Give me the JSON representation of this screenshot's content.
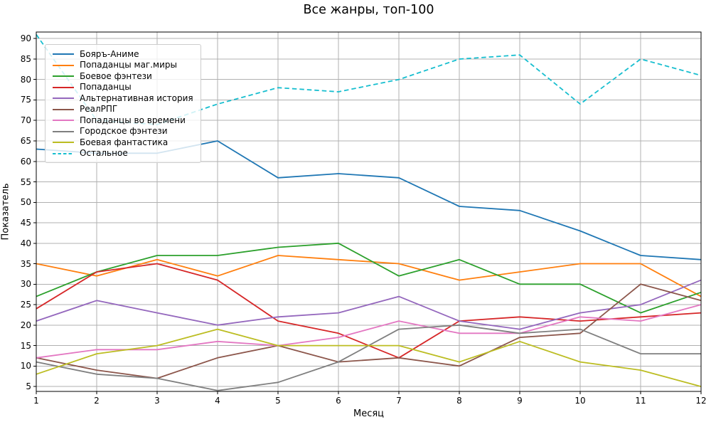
{
  "chart_data": {
    "type": "line",
    "title": "Все жанры, топ-100",
    "xlabel": "Месяц",
    "ylabel": "Показатель",
    "grid": true,
    "legend_position": "upper left",
    "x": [
      1,
      2,
      3,
      4,
      5,
      6,
      7,
      8,
      9,
      10,
      11,
      12
    ],
    "xticks": [
      1,
      2,
      3,
      4,
      5,
      6,
      7,
      8,
      9,
      10,
      11,
      12
    ],
    "yticks": [
      5,
      10,
      15,
      20,
      25,
      30,
      35,
      40,
      45,
      50,
      55,
      60,
      65,
      70,
      75,
      80,
      85,
      90
    ],
    "xlim": [
      1,
      12
    ],
    "ylim": [
      3.8,
      91.6
    ],
    "series": [
      {
        "name": "Бояръ-Аниме",
        "color": "#1f77b4",
        "dash": false,
        "values": [
          63,
          62,
          62,
          65,
          56,
          57,
          56,
          49,
          48,
          43,
          37,
          36
        ]
      },
      {
        "name": "Попаданцы маг.миры",
        "color": "#ff7f0e",
        "dash": false,
        "values": [
          35,
          32,
          36,
          32,
          37,
          36,
          35,
          31,
          33,
          35,
          35,
          27
        ]
      },
      {
        "name": "Боевое фэнтези",
        "color": "#2ca02c",
        "dash": false,
        "values": [
          27,
          33,
          37,
          37,
          39,
          40,
          32,
          36,
          30,
          30,
          23,
          28
        ]
      },
      {
        "name": "Попаданцы",
        "color": "#d62728",
        "dash": false,
        "values": [
          24,
          33,
          35,
          31,
          21,
          18,
          12,
          21,
          22,
          21,
          22,
          23
        ]
      },
      {
        "name": "Альтернативная история",
        "color": "#9467bd",
        "dash": false,
        "values": [
          21,
          26,
          23,
          20,
          22,
          23,
          27,
          21,
          19,
          23,
          25,
          31
        ]
      },
      {
        "name": "РеалРПГ",
        "color": "#8c564b",
        "dash": false,
        "values": [
          12,
          9,
          7,
          12,
          15,
          11,
          12,
          10,
          17,
          18,
          30,
          26
        ]
      },
      {
        "name": "Попаданцы во времени",
        "color": "#e377c2",
        "dash": false,
        "values": [
          12,
          14,
          14,
          16,
          15,
          17,
          21,
          18,
          18,
          22,
          21,
          25
        ]
      },
      {
        "name": "Городское фэнтези",
        "color": "#7f7f7f",
        "dash": false,
        "values": [
          11,
          8,
          7,
          4,
          6,
          11,
          19,
          20,
          18,
          19,
          13,
          13
        ]
      },
      {
        "name": "Боевая фантастика",
        "color": "#bcbd22",
        "dash": false,
        "values": [
          8,
          13,
          15,
          19,
          15,
          15,
          15,
          11,
          16,
          11,
          9,
          5
        ]
      },
      {
        "name": "Остальное",
        "color": "#17becf",
        "dash": true,
        "values": [
          91,
          70,
          69,
          74,
          78,
          77,
          80,
          85,
          86,
          74,
          85,
          81
        ]
      }
    ]
  },
  "style_colors": {
    "grid": "#b0b0b0",
    "spine": "#000000",
    "background": "#ffffff",
    "text": "#000000"
  }
}
